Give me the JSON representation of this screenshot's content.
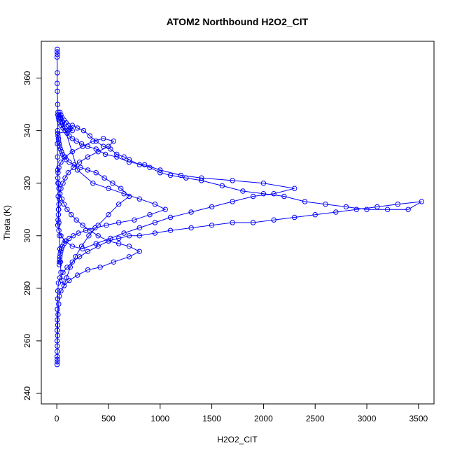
{
  "chart_data": {
    "type": "line",
    "title": "ATOM2 Northbound H2O2_CIT",
    "xlabel": "H2O2_CIT",
    "ylabel": "Theta (K)",
    "xlim": [
      -150,
      3650
    ],
    "ylim": [
      236,
      374
    ],
    "xticks": [
      "0",
      "500",
      "1000",
      "1500",
      "2000",
      "2500",
      "3000",
      "3500"
    ],
    "yticks": [
      "240",
      "260",
      "280",
      "300",
      "320",
      "340",
      "360"
    ],
    "grid": false,
    "colors": {
      "series": "#0000ff",
      "axis": "#000000"
    },
    "series": [
      {
        "markers": "open-circle",
        "points": [
          [
            5,
            371
          ],
          [
            4,
            370
          ],
          [
            6,
            369
          ],
          [
            3,
            368
          ],
          [
            5,
            362
          ],
          [
            4,
            358
          ],
          [
            6,
            355
          ],
          [
            8,
            350
          ],
          [
            12,
            347
          ],
          [
            20,
            346
          ],
          [
            35,
            345
          ],
          [
            55,
            343
          ],
          [
            80,
            341
          ],
          [
            110,
            340
          ],
          [
            150,
            342
          ],
          [
            200,
            341
          ],
          [
            260,
            340
          ],
          [
            320,
            338
          ],
          [
            380,
            336
          ],
          [
            450,
            334
          ],
          [
            520,
            333
          ],
          [
            580,
            331
          ],
          [
            650,
            330
          ],
          [
            700,
            329
          ],
          [
            800,
            327
          ],
          [
            900,
            326
          ],
          [
            1000,
            324
          ],
          [
            1100,
            323
          ],
          [
            1250,
            322
          ],
          [
            1400,
            321
          ],
          [
            1600,
            319
          ],
          [
            1800,
            317
          ],
          [
            2000,
            316
          ],
          [
            2200,
            315
          ],
          [
            2400,
            313
          ],
          [
            2600,
            312
          ],
          [
            2800,
            311
          ],
          [
            3000,
            310
          ],
          [
            3200,
            310
          ],
          [
            3400,
            310
          ],
          [
            3530,
            313
          ],
          [
            3300,
            312
          ],
          [
            3100,
            311
          ],
          [
            2900,
            310
          ],
          [
            2700,
            309
          ],
          [
            2500,
            308
          ],
          [
            2300,
            307
          ],
          [
            2100,
            306
          ],
          [
            1900,
            305
          ],
          [
            1700,
            305
          ],
          [
            1500,
            304
          ],
          [
            1300,
            303
          ],
          [
            1100,
            302
          ],
          [
            950,
            301
          ],
          [
            800,
            300
          ],
          [
            700,
            300
          ],
          [
            600,
            299
          ],
          [
            500,
            298
          ],
          [
            400,
            296
          ],
          [
            300,
            294
          ],
          [
            220,
            292
          ],
          [
            150,
            290
          ],
          [
            100,
            288
          ],
          [
            60,
            286
          ],
          [
            30,
            284
          ],
          [
            15,
            282
          ],
          [
            10,
            279
          ],
          [
            8,
            276
          ],
          [
            6,
            272
          ],
          [
            5,
            268
          ],
          [
            4,
            264
          ],
          [
            3,
            260
          ],
          [
            4,
            256
          ],
          [
            5,
            253
          ],
          [
            3,
            251
          ],
          [
            6,
            252
          ],
          [
            4,
            254
          ],
          [
            5,
            258
          ],
          [
            7,
            262
          ],
          [
            9,
            266
          ],
          [
            12,
            270
          ],
          [
            18,
            274
          ],
          [
            25,
            277
          ],
          [
            40,
            279
          ],
          [
            70,
            281
          ],
          [
            120,
            283
          ],
          [
            200,
            285
          ],
          [
            300,
            287
          ],
          [
            420,
            288
          ],
          [
            550,
            290
          ],
          [
            700,
            292
          ],
          [
            800,
            294
          ],
          [
            700,
            296
          ],
          [
            600,
            297
          ],
          [
            500,
            298
          ],
          [
            400,
            300
          ],
          [
            320,
            302
          ],
          [
            250,
            304
          ],
          [
            190,
            306
          ],
          [
            140,
            308
          ],
          [
            100,
            310
          ],
          [
            70,
            312
          ],
          [
            50,
            314
          ],
          [
            30,
            316
          ],
          [
            20,
            318
          ],
          [
            15,
            320
          ],
          [
            10,
            322
          ],
          [
            12,
            324
          ],
          [
            20,
            326
          ],
          [
            40,
            328
          ],
          [
            80,
            330
          ],
          [
            150,
            332
          ],
          [
            250,
            334
          ],
          [
            350,
            336
          ],
          [
            450,
            337
          ],
          [
            550,
            336
          ],
          [
            500,
            334
          ],
          [
            400,
            332
          ],
          [
            300,
            330
          ],
          [
            220,
            328
          ],
          [
            160,
            326
          ],
          [
            110,
            324
          ],
          [
            80,
            322
          ],
          [
            60,
            320
          ],
          [
            40,
            318
          ],
          [
            30,
            316
          ],
          [
            25,
            314
          ],
          [
            20,
            312
          ],
          [
            18,
            310
          ],
          [
            15,
            308
          ],
          [
            12,
            306
          ],
          [
            10,
            304
          ],
          [
            20,
            302
          ],
          [
            40,
            300
          ],
          [
            80,
            298
          ],
          [
            150,
            296
          ],
          [
            250,
            295
          ],
          [
            380,
            297
          ],
          [
            520,
            299
          ],
          [
            650,
            301
          ],
          [
            800,
            303
          ],
          [
            950,
            305
          ],
          [
            1100,
            307
          ],
          [
            1300,
            309
          ],
          [
            1500,
            311
          ],
          [
            1700,
            313
          ],
          [
            1900,
            315
          ],
          [
            2100,
            316
          ],
          [
            2300,
            318
          ],
          [
            2000,
            320
          ],
          [
            1700,
            321
          ],
          [
            1400,
            322
          ],
          [
            1200,
            323
          ],
          [
            1000,
            325
          ],
          [
            850,
            327
          ],
          [
            700,
            328
          ],
          [
            580,
            330
          ],
          [
            470,
            331
          ],
          [
            380,
            333
          ],
          [
            300,
            334
          ],
          [
            240,
            335
          ],
          [
            190,
            336
          ],
          [
            150,
            337
          ],
          [
            120,
            338
          ],
          [
            100,
            339
          ],
          [
            80,
            340
          ],
          [
            60,
            341
          ],
          [
            40,
            342
          ],
          [
            30,
            343
          ],
          [
            20,
            344
          ],
          [
            15,
            345
          ],
          [
            10,
            346
          ],
          [
            8,
            340
          ],
          [
            6,
            335
          ],
          [
            7,
            330
          ],
          [
            9,
            325
          ],
          [
            11,
            320
          ],
          [
            13,
            315
          ],
          [
            16,
            310
          ],
          [
            20,
            305
          ],
          [
            25,
            300
          ],
          [
            30,
            295
          ],
          [
            35,
            290
          ],
          [
            40,
            286
          ],
          [
            50,
            283
          ],
          [
            70,
            281
          ],
          [
            95,
            284
          ],
          [
            130,
            288
          ],
          [
            180,
            292
          ],
          [
            240,
            296
          ],
          [
            310,
            300
          ],
          [
            400,
            304
          ],
          [
            500,
            308
          ],
          [
            600,
            312
          ],
          [
            700,
            315
          ],
          [
            620,
            318
          ],
          [
            540,
            320
          ],
          [
            460,
            322
          ],
          [
            380,
            324
          ],
          [
            300,
            325
          ],
          [
            230,
            326
          ],
          [
            170,
            327
          ],
          [
            120,
            328
          ],
          [
            90,
            329
          ],
          [
            70,
            330
          ],
          [
            55,
            331
          ],
          [
            45,
            332
          ],
          [
            35,
            333
          ],
          [
            28,
            334
          ],
          [
            22,
            335
          ],
          [
            18,
            336
          ],
          [
            15,
            337
          ],
          [
            12,
            338
          ],
          [
            10,
            339
          ],
          [
            150,
            340
          ],
          [
            130,
            341
          ],
          [
            110,
            342
          ],
          [
            90,
            343
          ],
          [
            70,
            344
          ],
          [
            50,
            345
          ],
          [
            40,
            346
          ],
          [
            30,
            347
          ],
          [
            200,
            325
          ],
          [
            350,
            320
          ],
          [
            500,
            318
          ],
          [
            650,
            316
          ],
          [
            800,
            314
          ],
          [
            950,
            312
          ],
          [
            1050,
            310
          ],
          [
            900,
            308
          ],
          [
            750,
            306
          ],
          [
            600,
            305
          ],
          [
            480,
            304
          ],
          [
            370,
            303
          ],
          [
            280,
            302
          ],
          [
            210,
            301
          ],
          [
            160,
            300
          ],
          [
            120,
            299
          ],
          [
            90,
            298
          ],
          [
            70,
            297
          ],
          [
            55,
            296
          ],
          [
            45,
            295
          ],
          [
            38,
            294
          ],
          [
            33,
            293
          ],
          [
            30,
            292
          ],
          [
            28,
            291
          ],
          [
            26,
            290
          ],
          [
            24,
            289
          ]
        ]
      }
    ]
  }
}
